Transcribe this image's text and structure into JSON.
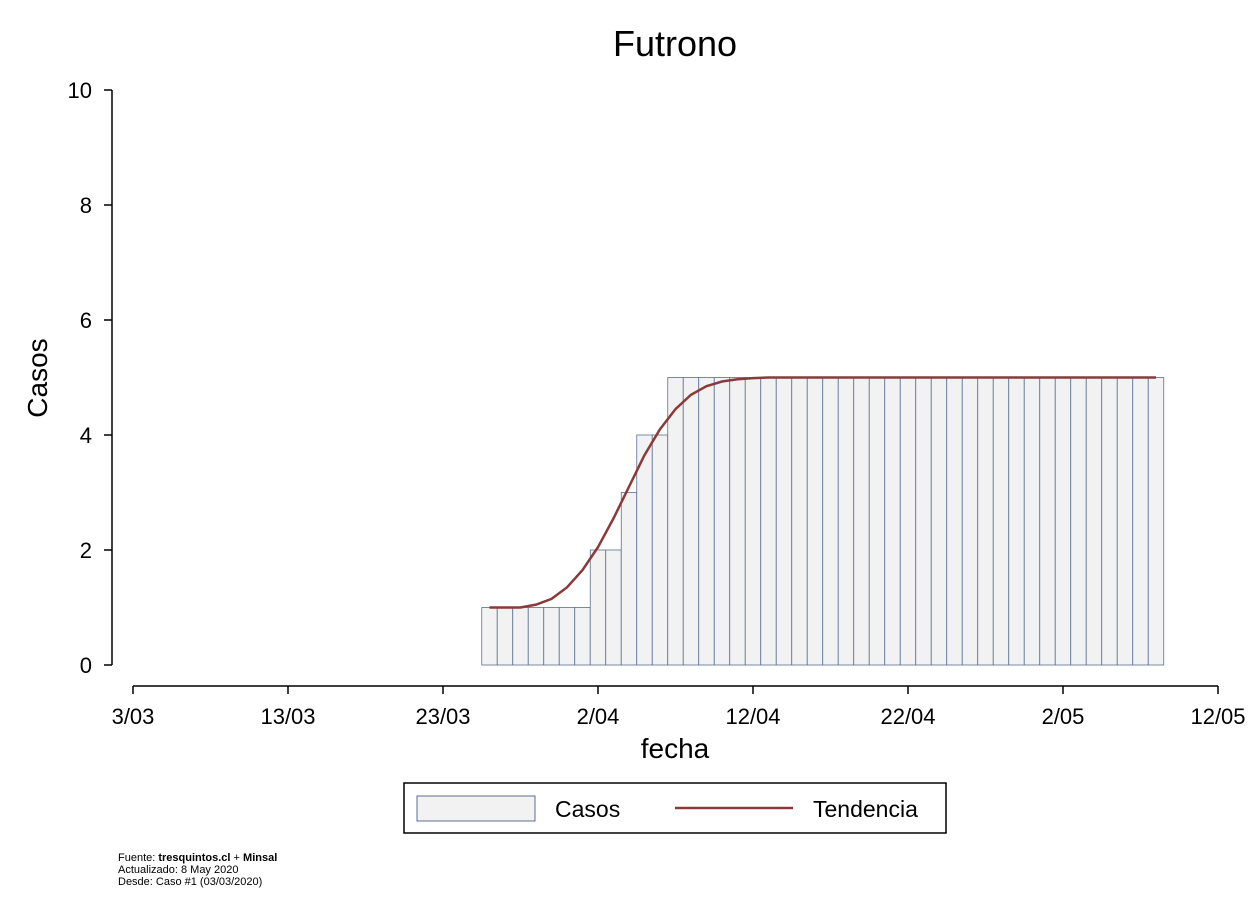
{
  "chart_data": {
    "type": "bar",
    "title": "Futrono",
    "xlabel": "fecha",
    "ylabel": "Casos",
    "ylim": [
      0,
      10
    ],
    "yticks": [
      0,
      2,
      4,
      6,
      8,
      10
    ],
    "xlim": [
      "2020-03-03",
      "2020-05-12"
    ],
    "xticks": [
      {
        "date": "2020-03-03",
        "label": "3/03"
      },
      {
        "date": "2020-03-13",
        "label": "13/03"
      },
      {
        "date": "2020-03-23",
        "label": "23/03"
      },
      {
        "date": "2020-04-02",
        "label": "2/04"
      },
      {
        "date": "2020-04-12",
        "label": "12/04"
      },
      {
        "date": "2020-04-22",
        "label": "22/04"
      },
      {
        "date": "2020-05-02",
        "label": "2/05"
      },
      {
        "date": "2020-05-12",
        "label": "12/05"
      }
    ],
    "grid": false,
    "legend_position": "bottom",
    "series": [
      {
        "name": "Casos",
        "type": "bar",
        "color": "#f2f2f2",
        "edge_color": "#5a6f8f",
        "start_date": "2020-03-26",
        "values": [
          1,
          1,
          1,
          1,
          1,
          1,
          1,
          2,
          2,
          3,
          4,
          4,
          5,
          5,
          5,
          5,
          5,
          5,
          5,
          5,
          5,
          5,
          5,
          5,
          5,
          5,
          5,
          5,
          5,
          5,
          5,
          5,
          5,
          5,
          5,
          5,
          5,
          5,
          5,
          5,
          5,
          5,
          5,
          5
        ]
      },
      {
        "name": "Tendencia",
        "type": "line",
        "color": "#8b3a3a",
        "start_date": "2020-03-26",
        "values": [
          1,
          1,
          1,
          1.05,
          1.15,
          1.35,
          1.65,
          2.05,
          2.55,
          3.1,
          3.65,
          4.1,
          4.45,
          4.7,
          4.85,
          4.93,
          4.97,
          4.99,
          5,
          5,
          5,
          5,
          5,
          5,
          5,
          5,
          5,
          5,
          5,
          5,
          5,
          5,
          5,
          5,
          5,
          5,
          5,
          5,
          5,
          5,
          5,
          5,
          5,
          5
        ]
      }
    ]
  },
  "legend": {
    "casos_label": "Casos",
    "tendencia_label": "Tendencia"
  },
  "footer": {
    "fuente_prefix": "Fuente: ",
    "fuente_source": "tresquintos.cl",
    "fuente_plus": " + ",
    "fuente_minsal": "Minsal",
    "actualizado": "Actualizado: 8 May 2020",
    "desde": "Desde: Caso #1  (03/03/2020)"
  }
}
